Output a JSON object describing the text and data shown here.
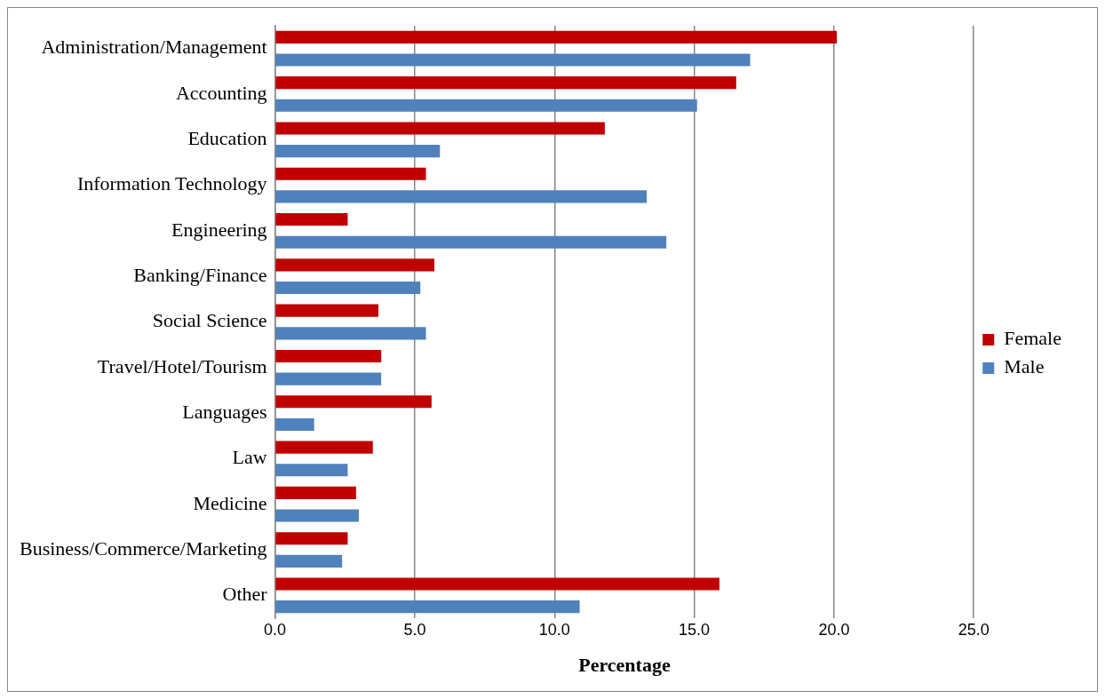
{
  "chart_data": {
    "type": "bar",
    "orientation": "horizontal",
    "xlabel": "Percentage",
    "categories": [
      "Administration/Management",
      "Accounting",
      "Education",
      "Information Technology",
      "Engineering",
      "Banking/Finance",
      "Social Science",
      "Travel/Hotel/Tourism",
      "Languages",
      "Law",
      "Medicine",
      "Business/Commerce/Marketing",
      "Other"
    ],
    "series": [
      {
        "name": "Female",
        "color": "#c00000",
        "values": [
          20.1,
          16.5,
          11.8,
          5.4,
          2.6,
          5.7,
          3.7,
          3.8,
          5.6,
          3.5,
          2.9,
          2.6,
          15.9
        ]
      },
      {
        "name": "Male",
        "color": "#4f81bd",
        "values": [
          17.0,
          15.1,
          5.9,
          13.3,
          14.0,
          5.2,
          5.4,
          3.8,
          1.4,
          2.6,
          3.0,
          2.4,
          10.9
        ]
      }
    ],
    "xlim": [
      0,
      25
    ],
    "xticks": [
      {
        "value": 0,
        "label": "0.0"
      },
      {
        "value": 5,
        "label": "5.0"
      },
      {
        "value": 10,
        "label": "10.0"
      },
      {
        "value": 15,
        "label": "15.0"
      },
      {
        "value": 20,
        "label": "20.0"
      },
      {
        "value": 25,
        "label": "25.0"
      }
    ],
    "grid": "x",
    "legend": "right"
  }
}
